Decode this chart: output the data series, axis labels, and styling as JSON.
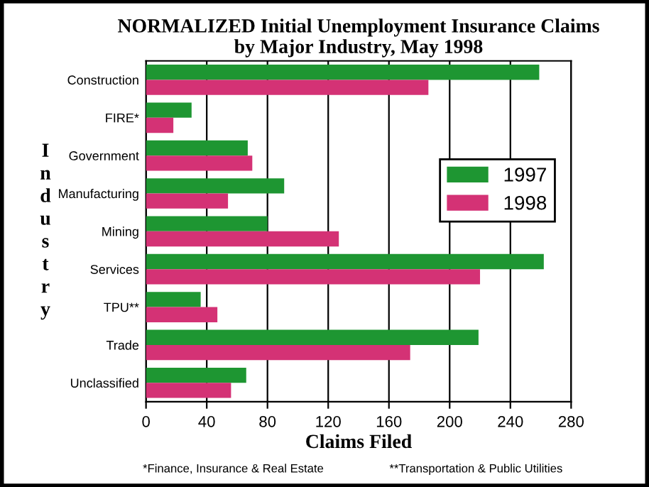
{
  "chart_data": {
    "type": "bar",
    "orientation": "horizontal",
    "title": "NORMALIZED Initial Unemployment Insurance Claims\nby Major Industry, May 1998",
    "xlabel": "Claims Filed",
    "ylabel": "Industry",
    "categories": [
      "Construction",
      "FIRE*",
      "Government",
      "Manufacturing",
      "Mining",
      "Services",
      "TPU**",
      "Trade",
      "Unclassified"
    ],
    "series": [
      {
        "name": "1997",
        "color": "#1e9632",
        "values": [
          259,
          30,
          67,
          91,
          80,
          262,
          36,
          219,
          66
        ]
      },
      {
        "name": "1998",
        "color": "#d43275",
        "values": [
          186,
          18,
          70,
          54,
          127,
          220,
          47,
          174,
          56
        ]
      }
    ],
    "xlim": [
      0,
      280
    ],
    "xticks": [
      0,
      40,
      80,
      120,
      160,
      200,
      240,
      280
    ],
    "grid": "x",
    "legend": "right",
    "annotations": [
      "*Finance, Insurance & Real Estate",
      "**Transportation & Public Utilities"
    ]
  }
}
